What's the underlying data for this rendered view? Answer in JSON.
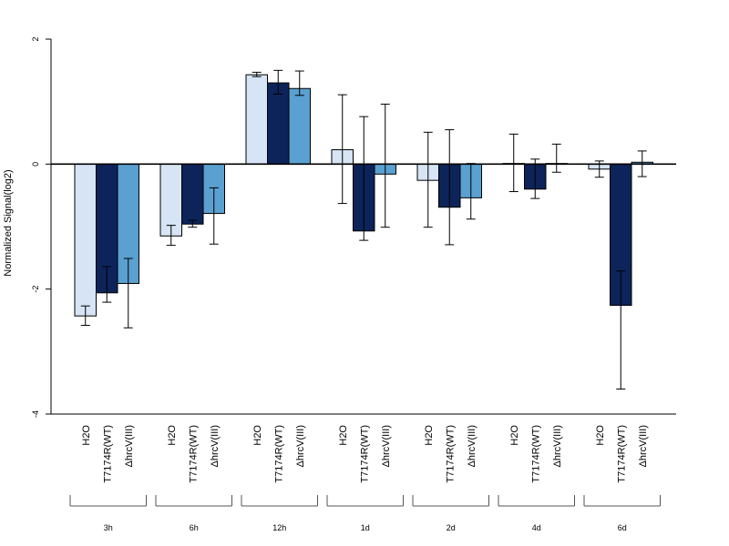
{
  "chart_data": {
    "type": "bar",
    "ylabel": "Normalized Signal(log2)",
    "ylim": [
      -4,
      2
    ],
    "yticks": [
      "2",
      "0",
      "-2",
      "-4"
    ],
    "grid": false,
    "groups": [
      "3h",
      "6h",
      "12h",
      "1d",
      "2d",
      "4d",
      "6d"
    ],
    "series": [
      {
        "name": "H2O",
        "color": "#d6e4f5",
        "values": [
          -2.43,
          -1.15,
          1.43,
          0.23,
          -0.26,
          0.01,
          -0.08
        ],
        "err_low": [
          -2.58,
          -1.3,
          1.4,
          -0.63,
          -1.01,
          -0.44,
          -0.21
        ],
        "err_high": [
          -2.27,
          -0.98,
          1.47,
          1.11,
          0.51,
          0.48,
          0.05
        ]
      },
      {
        "name": "T7174R(WT)",
        "color": "#0c2459",
        "values": [
          -2.06,
          -0.96,
          1.3,
          -1.07,
          -0.69,
          -0.4,
          -2.26
        ],
        "err_low": [
          -2.21,
          -1.01,
          1.12,
          -1.22,
          -1.29,
          -0.55,
          -3.6
        ],
        "err_high": [
          -1.64,
          -0.9,
          1.5,
          0.76,
          0.55,
          0.08,
          -1.71
        ]
      },
      {
        "name": "ΔhrcV(III)",
        "color": "#5aa0d0",
        "values": [
          -1.91,
          -0.79,
          1.21,
          -0.16,
          -0.54,
          0.01,
          0.03
        ],
        "err_low": [
          -2.62,
          -1.28,
          1.1,
          -1.01,
          -0.88,
          -0.13,
          -0.2
        ],
        "err_high": [
          -1.51,
          -0.38,
          1.49,
          0.96,
          0.01,
          0.32,
          0.21
        ]
      }
    ]
  }
}
